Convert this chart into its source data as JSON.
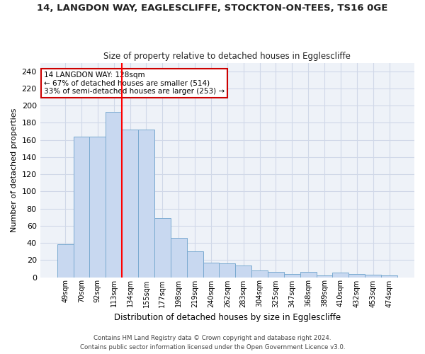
{
  "title_line1": "14, LANGDON WAY, EAGLESCLIFFE, STOCKTON-ON-TEES, TS16 0GE",
  "title_line2": "Size of property relative to detached houses in Egglescliffe",
  "xlabel": "Distribution of detached houses by size in Egglescliffe",
  "ylabel": "Number of detached properties",
  "categories": [
    "49sqm",
    "70sqm",
    "92sqm",
    "113sqm",
    "134sqm",
    "155sqm",
    "177sqm",
    "198sqm",
    "219sqm",
    "240sqm",
    "262sqm",
    "283sqm",
    "304sqm",
    "325sqm",
    "347sqm",
    "368sqm",
    "389sqm",
    "410sqm",
    "432sqm",
    "453sqm",
    "474sqm"
  ],
  "values": [
    38,
    164,
    164,
    193,
    172,
    172,
    69,
    46,
    30,
    17,
    16,
    14,
    8,
    6,
    4,
    6,
    2,
    5,
    4,
    3,
    2
  ],
  "bar_color": "#c8d8f0",
  "bar_edge_color": "#7aaad0",
  "red_line_x": 3.5,
  "annotation_text_line1": "14 LANGDON WAY: 128sqm",
  "annotation_text_line2": "← 67% of detached houses are smaller (514)",
  "annotation_text_line3": "33% of semi-detached houses are larger (253) →",
  "annotation_box_color": "#ffffff",
  "annotation_box_edge_color": "#cc0000",
  "grid_color": "#d0d8e8",
  "background_color": "#eef2f8",
  "fig_background": "#ffffff",
  "ylim": [
    0,
    250
  ],
  "yticks": [
    0,
    20,
    40,
    60,
    80,
    100,
    120,
    140,
    160,
    180,
    200,
    220,
    240
  ],
  "footer_line1": "Contains HM Land Registry data © Crown copyright and database right 2024.",
  "footer_line2": "Contains public sector information licensed under the Open Government Licence v3.0."
}
